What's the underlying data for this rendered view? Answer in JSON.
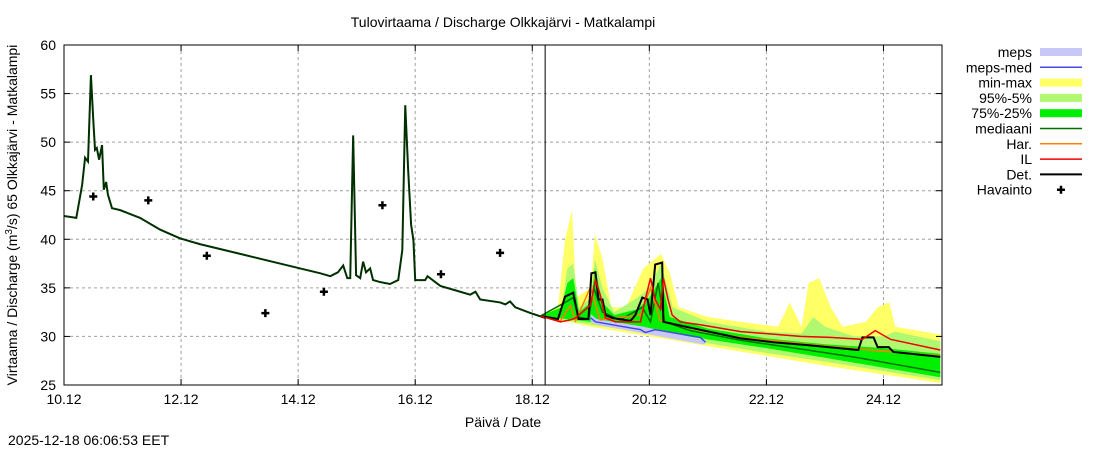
{
  "chart_data": {
    "type": "line",
    "title": "Tulovirtaama / Discharge  Olkkajärvi - Matkalampi",
    "xlabel": "Päivä / Date",
    "ylabel": "Virtaama / Discharge (m³/s)  65 Olkkajärvi - Matkalampi",
    "ylabel_parts": [
      "Virtaama / Discharge (m",
      "3",
      "/s)  65 Olkkajärvi - Matkalampi"
    ],
    "timestamp": "2025-12-18 06:06:53 EET",
    "x_unit": "days since 10.12 00:00",
    "xlim": [
      0,
      15
    ],
    "ylim": [
      25,
      60
    ],
    "now_day": 8.22,
    "grid": true,
    "legend_position": "right",
    "x_ticks": [
      {
        "v": 0,
        "label": "10.12"
      },
      {
        "v": 2,
        "label": "12.12"
      },
      {
        "v": 4,
        "label": "14.12"
      },
      {
        "v": 6,
        "label": "16.12"
      },
      {
        "v": 8,
        "label": "18.12"
      },
      {
        "v": 10,
        "label": "20.12"
      },
      {
        "v": 12,
        "label": "22.12"
      },
      {
        "v": 14,
        "label": "24.12"
      }
    ],
    "y_ticks": [
      25,
      30,
      35,
      40,
      45,
      50,
      55,
      60
    ],
    "colors": {
      "meps": "#c8c8f8",
      "meps_med": "#4848e8",
      "minmax": "#ffff66",
      "p95": "#b0f870",
      "p75": "#00f000",
      "median": "#007000",
      "har": "#ff8000",
      "il": "#f00000",
      "det": "#000000",
      "now": "#e00000"
    },
    "legend": [
      {
        "key": "meps",
        "label": "meps",
        "kind": "band"
      },
      {
        "key": "meps_med",
        "label": "meps-med",
        "kind": "line"
      },
      {
        "key": "minmax",
        "label": "min-max",
        "kind": "band"
      },
      {
        "key": "p95",
        "label": "95%-5%",
        "kind": "band"
      },
      {
        "key": "p75",
        "label": "75%-25%",
        "kind": "band"
      },
      {
        "key": "median",
        "label": "mediaani",
        "kind": "line"
      },
      {
        "key": "har",
        "label": "Har.",
        "kind": "line"
      },
      {
        "key": "il",
        "label": "IL",
        "kind": "line"
      },
      {
        "key": "det",
        "label": "Det.",
        "kind": "line"
      },
      {
        "key": "obs",
        "label": "Havainto",
        "kind": "point"
      }
    ],
    "bands": {
      "minmax": {
        "upper": [
          [
            8.14,
            32.1
          ],
          [
            8.44,
            33
          ],
          [
            8.56,
            40
          ],
          [
            8.68,
            43
          ],
          [
            8.75,
            34
          ],
          [
            9.0,
            35
          ],
          [
            9.07,
            40.5
          ],
          [
            9.2,
            38
          ],
          [
            9.35,
            33
          ],
          [
            9.6,
            33
          ],
          [
            9.75,
            35
          ],
          [
            9.9,
            37
          ],
          [
            10.2,
            38.5
          ],
          [
            10.35,
            36.5
          ],
          [
            10.5,
            33
          ],
          [
            11.0,
            32
          ],
          [
            11.56,
            31.5
          ],
          [
            12.2,
            31
          ],
          [
            12.4,
            33.5
          ],
          [
            12.6,
            31
          ],
          [
            12.72,
            35.5
          ],
          [
            12.9,
            36
          ],
          [
            13.1,
            33
          ],
          [
            13.3,
            31
          ],
          [
            13.7,
            31.5
          ],
          [
            13.9,
            33
          ],
          [
            14.1,
            33.5
          ],
          [
            14.2,
            31
          ],
          [
            14.97,
            30.2
          ]
        ],
        "lower": [
          [
            8.14,
            32.1
          ],
          [
            9.0,
            31
          ],
          [
            10.0,
            30
          ],
          [
            11.0,
            29
          ],
          [
            12.0,
            28
          ],
          [
            13.0,
            27
          ],
          [
            14.97,
            25.2
          ]
        ]
      },
      "p95": {
        "upper": [
          [
            8.14,
            32.1
          ],
          [
            8.5,
            33
          ],
          [
            8.6,
            37
          ],
          [
            8.7,
            37.5
          ],
          [
            8.8,
            33
          ],
          [
            9.0,
            34
          ],
          [
            9.07,
            38
          ],
          [
            9.2,
            35
          ],
          [
            9.4,
            32.5
          ],
          [
            9.8,
            34
          ],
          [
            10.0,
            35
          ],
          [
            10.2,
            37.5
          ],
          [
            10.4,
            33
          ],
          [
            11.0,
            31.5
          ],
          [
            12.0,
            30.5
          ],
          [
            12.6,
            30.3
          ],
          [
            12.8,
            32
          ],
          [
            13.0,
            31
          ],
          [
            13.5,
            30
          ],
          [
            14.0,
            30
          ],
          [
            14.2,
            30.5
          ],
          [
            14.97,
            29.5
          ]
        ],
        "lower": [
          [
            8.14,
            32.1
          ],
          [
            9.0,
            31.2
          ],
          [
            10.0,
            30.3
          ],
          [
            11.0,
            29.3
          ],
          [
            12.0,
            28.3
          ],
          [
            13.0,
            27.4
          ],
          [
            14.97,
            25.5
          ]
        ]
      },
      "p75": {
        "upper": [
          [
            8.14,
            32.1
          ],
          [
            8.5,
            33
          ],
          [
            8.6,
            35.5
          ],
          [
            8.7,
            36
          ],
          [
            8.8,
            32.5
          ],
          [
            9.0,
            33.5
          ],
          [
            9.07,
            37
          ],
          [
            9.2,
            33.5
          ],
          [
            9.4,
            32.2
          ],
          [
            9.8,
            32.8
          ],
          [
            10.0,
            34
          ],
          [
            10.2,
            36
          ],
          [
            10.35,
            32
          ],
          [
            11.0,
            30.8
          ],
          [
            12.0,
            29.8
          ],
          [
            13.0,
            29.2
          ],
          [
            14.0,
            28.8
          ],
          [
            14.97,
            28.2
          ]
        ],
        "lower": [
          [
            8.14,
            32.1
          ],
          [
            9.0,
            31.5
          ],
          [
            10.0,
            30.6
          ],
          [
            11.0,
            29.7
          ],
          [
            12.0,
            28.8
          ],
          [
            13.0,
            27.8
          ],
          [
            14.97,
            25.8
          ]
        ]
      },
      "meps": {
        "upper": [
          [
            9.0,
            32.3
          ],
          [
            9.1,
            31.8
          ],
          [
            9.9,
            31
          ],
          [
            10.9,
            29.7
          ],
          [
            10.96,
            29.6
          ]
        ],
        "lower": [
          [
            9.0,
            31.5
          ],
          [
            9.1,
            31.2
          ],
          [
            9.9,
            30.3
          ],
          [
            10.9,
            29.2
          ],
          [
            10.96,
            29.2
          ]
        ]
      }
    },
    "series": {
      "history": [
        [
          0,
          42.4
        ],
        [
          0.21,
          42.2
        ],
        [
          0.31,
          45.6
        ],
        [
          0.36,
          48.4
        ],
        [
          0.41,
          48.0
        ],
        [
          0.46,
          56.9
        ],
        [
          0.5,
          52.3
        ],
        [
          0.53,
          49.2
        ],
        [
          0.56,
          49.4
        ],
        [
          0.6,
          48.2
        ],
        [
          0.65,
          49.7
        ],
        [
          0.68,
          45.1
        ],
        [
          0.72,
          45.9
        ],
        [
          0.75,
          44.6
        ],
        [
          0.82,
          43.2
        ],
        [
          0.96,
          43.0
        ],
        [
          1.3,
          42.2
        ],
        [
          1.64,
          41.0
        ],
        [
          1.98,
          40.1
        ],
        [
          2.32,
          39.5
        ],
        [
          3.01,
          38.5
        ],
        [
          3.69,
          37.5
        ],
        [
          4.38,
          36.5
        ],
        [
          4.55,
          36.2
        ],
        [
          4.68,
          36.6
        ],
        [
          4.77,
          37.3
        ],
        [
          4.84,
          36.0
        ],
        [
          4.89,
          36.0
        ],
        [
          4.94,
          50.7
        ],
        [
          4.99,
          36.3
        ],
        [
          5.06,
          36.0
        ],
        [
          5.11,
          37.7
        ],
        [
          5.16,
          36.6
        ],
        [
          5.23,
          37.0
        ],
        [
          5.28,
          35.8
        ],
        [
          5.4,
          35.6
        ],
        [
          5.57,
          35.4
        ],
        [
          5.71,
          35.8
        ],
        [
          5.78,
          38.9
        ],
        [
          5.83,
          53.8
        ],
        [
          5.88,
          47.1
        ],
        [
          5.93,
          41.5
        ],
        [
          5.97,
          39.9
        ],
        [
          6.0,
          35.8
        ],
        [
          6.17,
          35.8
        ],
        [
          6.21,
          36.2
        ],
        [
          6.43,
          35.2
        ],
        [
          6.77,
          34.6
        ],
        [
          6.94,
          34.3
        ],
        [
          7.03,
          34.6
        ],
        [
          7.11,
          33.8
        ],
        [
          7.45,
          33.5
        ],
        [
          7.54,
          33.3
        ],
        [
          7.62,
          33.6
        ],
        [
          7.71,
          33.0
        ],
        [
          7.97,
          32.4
        ],
        [
          8.22,
          31.9
        ]
      ],
      "det": [
        [
          8.14,
          32.1
        ],
        [
          8.44,
          31.8
        ],
        [
          8.56,
          34.1
        ],
        [
          8.7,
          34.5
        ],
        [
          8.79,
          31.8
        ],
        [
          8.96,
          31.8
        ],
        [
          9.01,
          36.5
        ],
        [
          9.08,
          36.6
        ],
        [
          9.13,
          33.8
        ],
        [
          9.2,
          33.8
        ],
        [
          9.25,
          32.2
        ],
        [
          9.37,
          31.9
        ],
        [
          9.68,
          31.6
        ],
        [
          9.76,
          32.2
        ],
        [
          9.88,
          34.0
        ],
        [
          9.97,
          33.8
        ],
        [
          10.02,
          32.2
        ],
        [
          10.1,
          37.4
        ],
        [
          10.22,
          37.6
        ],
        [
          10.24,
          31.5
        ],
        [
          10.7,
          30.9
        ],
        [
          11.56,
          29.8
        ],
        [
          12.12,
          29.4
        ],
        [
          12.7,
          29.1
        ],
        [
          13.57,
          28.6
        ],
        [
          13.64,
          29.9
        ],
        [
          13.83,
          29.9
        ],
        [
          13.9,
          28.9
        ],
        [
          14.09,
          28.9
        ],
        [
          14.17,
          28.4
        ],
        [
          14.97,
          27.9
        ]
      ],
      "il": [
        [
          8.14,
          32.1
        ],
        [
          8.48,
          31.5
        ],
        [
          8.65,
          31.7
        ],
        [
          8.74,
          31.9
        ],
        [
          8.99,
          33.2
        ],
        [
          9.08,
          35.8
        ],
        [
          9.16,
          34.3
        ],
        [
          9.25,
          31.9
        ],
        [
          9.42,
          31.5
        ],
        [
          9.85,
          31.5
        ],
        [
          9.93,
          33.8
        ],
        [
          10.02,
          36.0
        ],
        [
          10.1,
          33.8
        ],
        [
          10.19,
          32.8
        ],
        [
          10.24,
          36.0
        ],
        [
          10.32,
          33.8
        ],
        [
          10.39,
          32.2
        ],
        [
          10.53,
          31.5
        ],
        [
          10.87,
          31.2
        ],
        [
          11.56,
          30.5
        ],
        [
          12.58,
          30.0
        ],
        [
          13.09,
          29.9
        ],
        [
          13.64,
          29.7
        ],
        [
          13.86,
          30.6
        ],
        [
          14.12,
          29.7
        ],
        [
          14.97,
          28.6
        ]
      ],
      "har": [
        [
          8.14,
          32.1
        ],
        [
          8.48,
          31.6
        ],
        [
          8.65,
          33.2
        ],
        [
          8.74,
          31.6
        ],
        [
          8.99,
          35.0
        ],
        [
          9.16,
          31.7
        ],
        [
          9.85,
          32.2
        ],
        [
          10.02,
          35.0
        ],
        [
          10.19,
          31.6
        ],
        [
          10.87,
          30.6
        ],
        [
          11.56,
          29.9
        ],
        [
          12.7,
          29.2
        ],
        [
          13.57,
          28.7
        ],
        [
          14.97,
          28.0
        ]
      ],
      "median": [
        [
          8.14,
          32.1
        ],
        [
          8.56,
          33.5
        ],
        [
          8.7,
          34.0
        ],
        [
          8.79,
          32.0
        ],
        [
          8.96,
          31.8
        ],
        [
          9.05,
          35.0
        ],
        [
          9.2,
          32.5
        ],
        [
          9.5,
          31.7
        ],
        [
          9.88,
          33.0
        ],
        [
          10.02,
          31.5
        ],
        [
          10.15,
          35.5
        ],
        [
          10.26,
          31.5
        ],
        [
          10.7,
          30.6
        ],
        [
          11.56,
          29.6
        ],
        [
          12.7,
          28.6
        ],
        [
          13.57,
          27.8
        ],
        [
          14.97,
          26.3
        ]
      ],
      "meps_med": [
        [
          9.0,
          31.9
        ],
        [
          9.08,
          31.5
        ],
        [
          9.85,
          30.7
        ],
        [
          9.93,
          30.4
        ],
        [
          10.1,
          30.7
        ],
        [
          10.87,
          29.9
        ],
        [
          10.96,
          29.4
        ]
      ],
      "obs": [
        [
          0.5,
          44.4
        ],
        [
          1.44,
          44.0
        ],
        [
          2.44,
          38.3
        ],
        [
          3.44,
          32.4
        ],
        [
          4.44,
          34.6
        ],
        [
          5.44,
          43.5
        ],
        [
          6.44,
          36.4
        ],
        [
          7.45,
          38.6
        ]
      ]
    }
  }
}
